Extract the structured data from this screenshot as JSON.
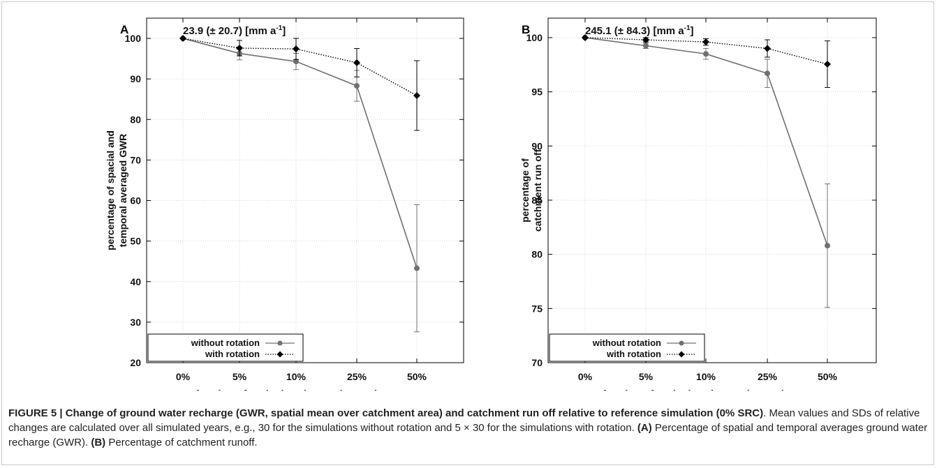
{
  "chart_data": [
    {
      "panel_label": "A",
      "type": "line",
      "categories": [
        "0%",
        "5%",
        "10%",
        "25%",
        "50%"
      ],
      "xlabel": "fraction of agricultural area changed to SRC",
      "ylabel_lines": [
        "percentage of spacial and",
        "temporal averaged GWR"
      ],
      "ylim": [
        20,
        105
      ],
      "yticks": [
        20,
        30,
        40,
        50,
        60,
        70,
        80,
        90,
        100
      ],
      "annotation": {
        "main": "23.9 (± 20.7) [mm a",
        "sup": "-1",
        "close": "]"
      },
      "grid": true,
      "legend_position": "bottom-left",
      "series": [
        {
          "name": "without rotation",
          "color": "#707070",
          "dash": "solid",
          "marker": "circle",
          "values": [
            100,
            96.3,
            94.3,
            88.3,
            43.3
          ],
          "errors": [
            0,
            1.6,
            2.0,
            3.8,
            15.7
          ]
        },
        {
          "name": "with rotation",
          "color": "#000000",
          "dash": "dotted",
          "marker": "diamond",
          "values": [
            100,
            97.6,
            97.4,
            94.0,
            85.9
          ],
          "errors": [
            0,
            1.9,
            2.6,
            3.5,
            8.6
          ]
        }
      ]
    },
    {
      "panel_label": "B",
      "type": "line",
      "categories": [
        "0%",
        "5%",
        "10%",
        "25%",
        "50%"
      ],
      "xlabel": "fraction of agricultural area changed to SRC",
      "ylabel_lines": [
        "percentage of",
        "catchment run off"
      ],
      "ylim": [
        70,
        101.8
      ],
      "yticks": [
        70,
        75,
        80,
        85,
        90,
        95,
        100
      ],
      "annotation": {
        "main": "245.1 (± 84.3) [mm a",
        "sup": "-1",
        "close": "]"
      },
      "grid": true,
      "legend_position": "bottom-left",
      "series": [
        {
          "name": "without rotation",
          "color": "#707070",
          "dash": "solid",
          "marker": "circle",
          "values": [
            100,
            99.25,
            98.5,
            96.7,
            80.8
          ],
          "errors": [
            0,
            0.25,
            0.5,
            1.3,
            5.7
          ]
        },
        {
          "name": "with rotation",
          "color": "#000000",
          "dash": "dotted",
          "marker": "diamond",
          "values": [
            100,
            99.8,
            99.6,
            99.0,
            97.55
          ],
          "errors": [
            0,
            0.2,
            0.3,
            0.8,
            2.15
          ]
        }
      ]
    }
  ],
  "caption": {
    "title": "FIGURE 5 | Change of ground water recharge (GWR, spatial mean over catchment area) and catchment run off relative to reference simulation (0% SRC)",
    "body": ". Mean values and SDs of relative changes are calculated over all simulated years, e.g., 30 for the simulations without rotation and 5 × 30 for the simulations with rotation. ",
    "a_label": "(A)",
    "a_text": " Percentage of spatial and temporal averages ground water recharge (GWR). ",
    "b_label": "(B)",
    "b_text": " Percentage of catchment runoff."
  }
}
